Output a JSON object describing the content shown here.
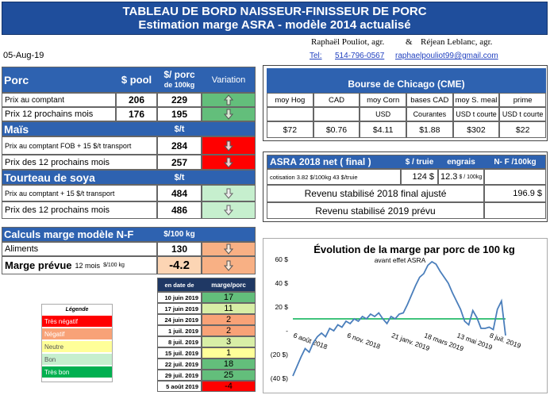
{
  "header": {
    "title": "TABLEAU DE BORD NAISSEUR-FINISSEUR DE PORC",
    "subtitle": "Estimation marge ASRA - modèle 2014 actualisé",
    "author_1": "Raphaël Pouliot, agr.",
    "ampersand": "&",
    "author_2": "Réjean Leblanc, agr.",
    "date": "05-Aug-19",
    "tel_label": "Tel:",
    "phone": "514-796-0567",
    "email": "raphaelpouliot99@gmail.com"
  },
  "porc": {
    "header": [
      "Porc",
      "$ pool",
      "$/ porc",
      "de 100kg",
      "Variation"
    ],
    "rows": [
      [
        "Prix au comptant",
        206,
        229
      ],
      [
        "Prix 12 prochains mois",
        176,
        195
      ]
    ]
  },
  "mais": {
    "header": [
      "Maïs",
      "$/t"
    ],
    "rows": [
      [
        "Prix au comptant FOB + 15 $/t transport",
        284
      ],
      [
        "Prix des 12 prochains mois",
        257
      ]
    ]
  },
  "tourteau": {
    "header": [
      "Tourteau de soya",
      "$/t"
    ],
    "rows": [
      [
        "Prix au comptant + 15 $/t transport",
        484
      ],
      [
        "Prix des 12 prochains mois",
        486
      ]
    ]
  },
  "calculs": {
    "header": [
      "Calculs marge  modèle N-F",
      "$/100 kg"
    ],
    "rows": [
      [
        "Aliments",
        130
      ],
      [
        "Marge prévue",
        "12 mois",
        "$/100 kg",
        -4.2
      ]
    ]
  },
  "historique": {
    "header": [
      "en date de",
      "marge/porc"
    ],
    "rows": [
      [
        "10 juin 2019",
        17
      ],
      [
        "17 juin 2019",
        11
      ],
      [
        "24 juin 2019",
        2
      ],
      [
        "1 juil. 2019",
        2
      ],
      [
        "8 juil. 2019",
        3
      ],
      [
        "15 juil. 2019",
        1
      ],
      [
        "22 juil. 2019",
        18
      ],
      [
        "29 juil. 2019",
        25
      ],
      [
        "5 août 2019",
        -4
      ]
    ]
  },
  "legende": {
    "title": "Légende",
    "items": [
      "Très négatif",
      "Négatif",
      "Neutre",
      "Bon",
      "Très bon"
    ]
  },
  "bourse": {
    "title": "Bourse de Chicago (CME)",
    "columns": [
      {
        "label": "moy Hog",
        "value": "$72"
      },
      {
        "label": "CAD",
        "value": "$0.76"
      },
      {
        "label": "moy Corn",
        "unit": "USD",
        "value": "$4.11"
      },
      {
        "label": "bases CAD",
        "unit": "Courantes",
        "value": "$1.88"
      },
      {
        "label": "moy S. meal",
        "unit": "USD t courte",
        "value": "$302"
      },
      {
        "label": "prime",
        "unit": "USD t courte",
        "value": "$22"
      }
    ]
  },
  "asra": {
    "header": [
      "ASRA 2018 net ( final )",
      "$ / truie",
      "engrais",
      "N- F /100kg"
    ],
    "cotisation": "cotisation 3.82 $/100kg  43 $/truie",
    "truie": "124 $",
    "engrais": 12.3,
    "engrais_unit": "$ / 100kg",
    "revenu_2018": "Revenu stabilisé 2018  final ajusté",
    "revenu_2018_value": "196.9 $",
    "revenu_2019": "Revenu stabilisé 2019 prévu"
  },
  "chart_data": {
    "type": "line",
    "title": "Évolution de la marge par porc de 100 kg",
    "subtitle": "avant effet ASRA",
    "x": [
      "2018-08-06",
      "2018-08-13",
      "2018-08-20",
      "2018-08-27",
      "2018-09-03",
      "2018-09-10",
      "2018-09-17",
      "2018-09-24",
      "2018-10-01",
      "2018-10-08",
      "2018-10-15",
      "2018-10-22",
      "2018-10-29",
      "2018-11-05",
      "2018-11-12",
      "2018-11-19",
      "2018-11-26",
      "2018-12-03",
      "2018-12-10",
      "2018-12-17",
      "2018-12-24",
      "2018-12-31",
      "2019-01-07",
      "2019-01-14",
      "2019-01-21",
      "2019-01-28",
      "2019-02-04",
      "2019-02-11",
      "2019-02-18",
      "2019-02-25",
      "2019-03-04",
      "2019-03-11",
      "2019-03-18",
      "2019-03-25",
      "2019-04-01",
      "2019-04-08",
      "2019-04-15",
      "2019-04-22",
      "2019-04-29",
      "2019-05-06",
      "2019-05-13",
      "2019-05-20",
      "2019-05-27",
      "2019-06-03",
      "2019-06-10",
      "2019-06-17",
      "2019-06-24",
      "2019-07-01",
      "2019-07-08",
      "2019-07-15",
      "2019-07-22",
      "2019-07-29",
      "2019-08-05"
    ],
    "series": [
      {
        "color": "#4a7ebb",
        "values": [
          -38,
          -30,
          -22,
          -15,
          -18,
          -10,
          -5,
          -2,
          -5,
          2,
          0,
          5,
          3,
          8,
          6,
          10,
          8,
          12,
          10,
          14,
          12,
          15,
          10,
          6,
          12,
          10,
          14,
          15,
          22,
          30,
          38,
          45,
          48,
          55,
          58,
          56,
          50,
          45,
          40,
          32,
          25,
          18,
          8,
          5,
          17,
          11,
          2,
          2,
          3,
          1,
          18,
          25,
          -4
        ]
      }
    ],
    "reference_line": {
      "value": 10,
      "color": "#00b050"
    },
    "xlim": [
      "2018-08-06",
      "2019-08-05"
    ],
    "xticks": [
      {
        "value": "2018-08-06",
        "label": "6 août 2018"
      },
      {
        "value": "2018-11-06",
        "label": "6 nov. 2018"
      },
      {
        "value": "2019-01-21",
        "label": "21 janv. 2019"
      },
      {
        "value": "2019-03-18",
        "label": "18 mars 2019"
      },
      {
        "value": "2019-05-13",
        "label": "13 mai 2019"
      },
      {
        "value": "2019-07-08",
        "label": "8 juil. 2019"
      }
    ],
    "ylim": [
      -40,
      60
    ],
    "yticks": [
      {
        "value": 60,
        "label": "60 $"
      },
      {
        "value": 40,
        "label": "40 $"
      },
      {
        "value": 20,
        "label": "20 $"
      },
      {
        "value": 0,
        "label": "-"
      },
      {
        "value": -20,
        "label": "(20 $)"
      },
      {
        "value": -40,
        "label": "(40 $)"
      }
    ]
  }
}
